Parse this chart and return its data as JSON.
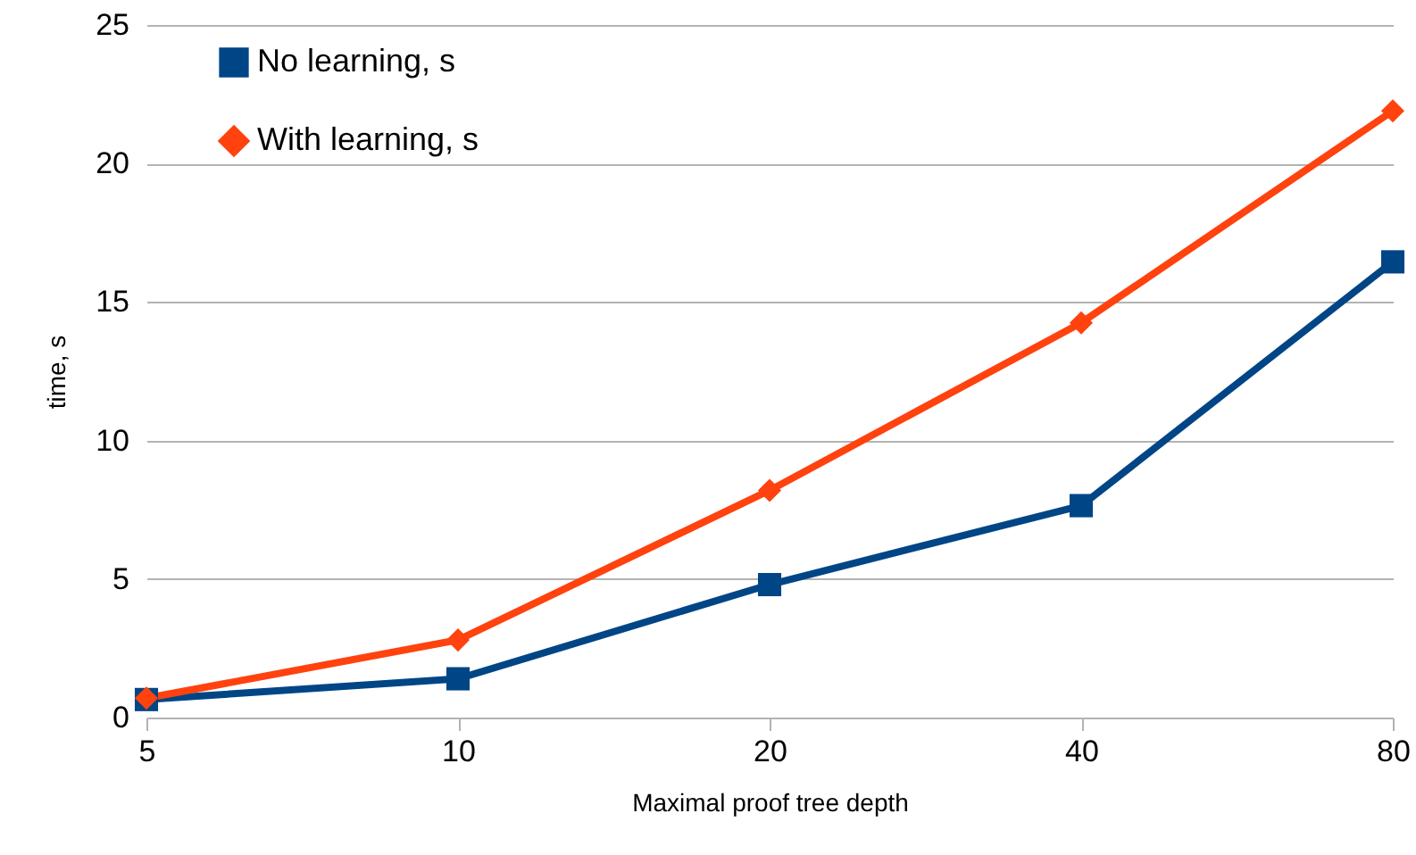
{
  "chart_data": {
    "type": "line",
    "xlabel": "Maximal proof tree depth",
    "ylabel": "time, s",
    "categories": [
      "5",
      "10",
      "20",
      "40",
      "80"
    ],
    "series": [
      {
        "name": "No learning, s",
        "color": "#004586",
        "marker": "square",
        "values": [
          0.65,
          1.4,
          4.8,
          7.65,
          16.45
        ]
      },
      {
        "name": "With learning, s",
        "color": "#ff420e",
        "marker": "diamond",
        "values": [
          0.7,
          2.8,
          8.2,
          14.25,
          21.9
        ]
      }
    ],
    "ylim": [
      0,
      25
    ],
    "yticks": [
      0,
      5,
      10,
      15,
      20,
      25
    ],
    "grid": "y",
    "legend": "top left",
    "line_style": "solid"
  }
}
